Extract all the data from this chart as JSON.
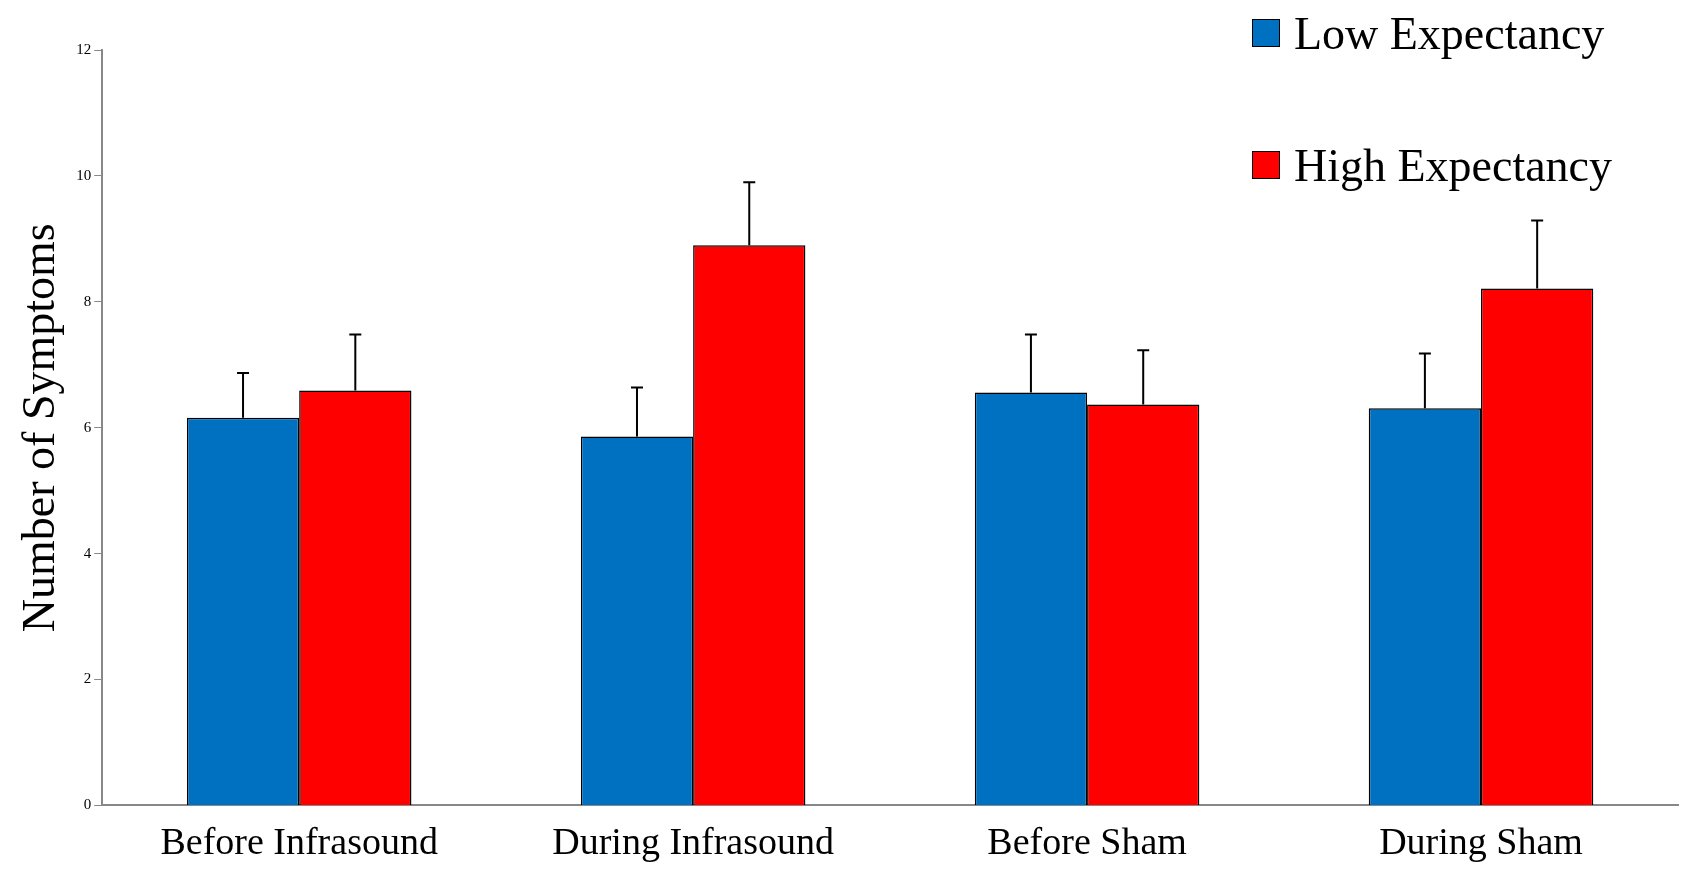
{
  "chart_data": {
    "type": "bar",
    "ylabel": "Number of Symptoms",
    "categories": [
      "Before Infrasound",
      "During Infrasound",
      "Before Sham",
      "During Sham"
    ],
    "series": [
      {
        "name": "Low Expectancy",
        "color": "#0070c0",
        "values": [
          6.16,
          5.86,
          6.56,
          6.31
        ],
        "errors": [
          [
            6.16,
            6.87
          ],
          [
            5.86,
            6.64
          ],
          [
            6.56,
            7.48
          ],
          [
            6.31,
            7.18
          ]
        ]
      },
      {
        "name": "High Expectancy",
        "color": "#ff0000",
        "values": [
          6.59,
          8.9,
          6.37,
          8.21
        ],
        "errors": [
          [
            6.59,
            7.48
          ],
          [
            8.9,
            9.9
          ],
          [
            6.37,
            7.23
          ],
          [
            8.21,
            9.29
          ]
        ]
      }
    ],
    "ylim": [
      0,
      12
    ],
    "yticks": [
      0,
      2,
      4,
      6,
      8,
      10,
      12
    ],
    "grid": false,
    "legend": "top right"
  }
}
